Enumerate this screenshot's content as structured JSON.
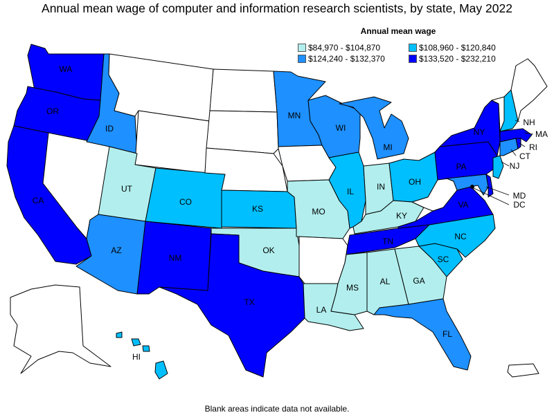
{
  "title": "Annual mean wage of computer and information research scientists, by state, May 2022",
  "legend": {
    "title": "Annual mean wage",
    "items": [
      {
        "label": "$84,970 - $104,870",
        "color": "#b2eeee"
      },
      {
        "label": "$108,960 - $120,840",
        "color": "#00bfff"
      },
      {
        "label": "$124,240 - $132,370",
        "color": "#1e90ff"
      },
      {
        "label": "$133,520 - $232,210",
        "color": "#0000ff"
      }
    ]
  },
  "footnote": "Blank areas indicate data not available.",
  "colors": {
    "none": "#ffffff",
    "c1": "#b2eeee",
    "c2": "#00bfff",
    "c3": "#1e90ff",
    "c4": "#0000ff",
    "border": "#000000"
  },
  "states": {
    "WA": {
      "label": "WA",
      "tier": 4
    },
    "OR": {
      "label": "OR",
      "tier": 4
    },
    "CA": {
      "label": "CA",
      "tier": 4
    },
    "ID": {
      "label": "ID",
      "tier": 3
    },
    "NV": {
      "label": "",
      "tier": 0
    },
    "MT": {
      "label": "",
      "tier": 0
    },
    "WY": {
      "label": "",
      "tier": 0
    },
    "UT": {
      "label": "UT",
      "tier": 1
    },
    "AZ": {
      "label": "AZ",
      "tier": 3
    },
    "CO": {
      "label": "CO",
      "tier": 2
    },
    "NM": {
      "label": "NM",
      "tier": 4
    },
    "ND": {
      "label": "",
      "tier": 0
    },
    "SD": {
      "label": "",
      "tier": 0
    },
    "NE": {
      "label": "",
      "tier": 0
    },
    "KS": {
      "label": "KS",
      "tier": 2
    },
    "OK": {
      "label": "OK",
      "tier": 1
    },
    "TX": {
      "label": "TX",
      "tier": 4
    },
    "MN": {
      "label": "MN",
      "tier": 3
    },
    "IA": {
      "label": "",
      "tier": 0
    },
    "MO": {
      "label": "MO",
      "tier": 1
    },
    "AR": {
      "label": "",
      "tier": 0
    },
    "LA": {
      "label": "LA",
      "tier": 1
    },
    "WI": {
      "label": "WI",
      "tier": 3
    },
    "IL": {
      "label": "IL",
      "tier": 2
    },
    "MI": {
      "label": "MI",
      "tier": 3
    },
    "IN": {
      "label": "IN",
      "tier": 1
    },
    "OH": {
      "label": "OH",
      "tier": 2
    },
    "KY": {
      "label": "KY",
      "tier": 1
    },
    "TN": {
      "label": "TN",
      "tier": 4
    },
    "MS": {
      "label": "MS",
      "tier": 1
    },
    "AL": {
      "label": "AL",
      "tier": 1
    },
    "GA": {
      "label": "GA",
      "tier": 1
    },
    "FL": {
      "label": "FL",
      "tier": 3
    },
    "SC": {
      "label": "SC",
      "tier": 2
    },
    "NC": {
      "label": "NC",
      "tier": 2
    },
    "VA": {
      "label": "VA",
      "tier": 4
    },
    "WV": {
      "label": "",
      "tier": 0
    },
    "PA": {
      "label": "PA",
      "tier": 4
    },
    "NY": {
      "label": "NY",
      "tier": 4
    },
    "MD": {
      "label": "MD",
      "tier": 3
    },
    "DE": {
      "label": "",
      "tier": 4
    },
    "NJ": {
      "label": "NJ",
      "tier": 2
    },
    "CT": {
      "label": "CT",
      "tier": 3
    },
    "RI": {
      "label": "RI",
      "tier": 4
    },
    "MA": {
      "label": "MA",
      "tier": 4
    },
    "VT": {
      "label": "",
      "tier": 0
    },
    "NH": {
      "label": "NH",
      "tier": 2
    },
    "ME": {
      "label": "",
      "tier": 0
    },
    "DC": {
      "label": "DC",
      "tier": 4
    },
    "AK": {
      "label": "",
      "tier": 0
    },
    "HI": {
      "label": "HI",
      "tier": 2
    },
    "PR": {
      "label": "",
      "tier": 0
    }
  }
}
